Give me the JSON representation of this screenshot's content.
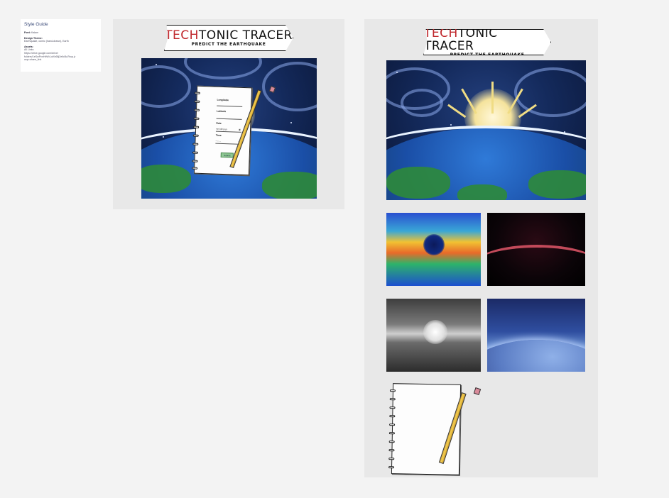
{
  "style_guide": {
    "title": "Style Guide",
    "font_label": "Font:",
    "font_value": "Kalam",
    "theme_label": "Design Theme:",
    "theme_value": "Earthquake, comic (hand-drawn), Earth",
    "assets_label": "Assets:",
    "assets_link_label": "All Links",
    "assets_url_1": "https://drive.google.com/drive/",
    "assets_url_2": "folders/1eSwPvnHbW4-uKh68j2eIk/8a7hup-jr",
    "assets_url_3": "usp=share_link"
  },
  "logo": {
    "title_red": "Tech",
    "title_black": "tonic Tracer",
    "subtitle": "PREDICT THE EARTHQUAKE"
  },
  "form": {
    "longitude_label": "Longitude",
    "latitude_label": "Latitude",
    "date_label": "Date",
    "date_value": "mm/dd/yyyy",
    "time_label": "Time",
    "time_value": "--:-- --",
    "submit_label": "Submit"
  },
  "colors": {
    "background": "#f3f3f3",
    "frame": "#e8e8e8",
    "logo_red": "#c0282d",
    "submit_green": "#8fc894",
    "style_text": "#2d3a66"
  },
  "icons": {
    "calendar": "calendar-icon",
    "clock": "clock-icon"
  }
}
